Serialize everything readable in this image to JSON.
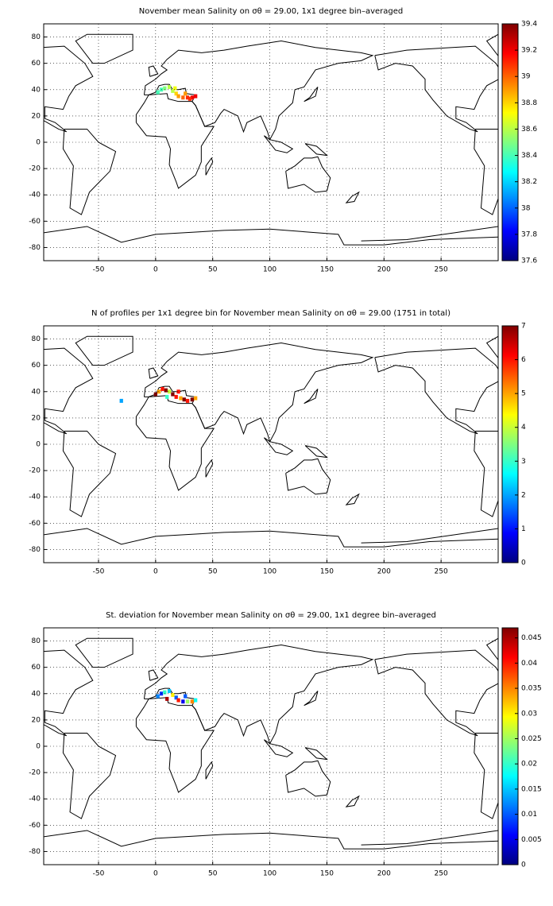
{
  "chart_data": [
    {
      "type": "map",
      "title": "November mean Salinity on σθ = 29.00, 1x1 degree bin–averaged",
      "colormap": "jet",
      "grid": true,
      "xlim": [
        -98,
        300
      ],
      "ylim": [
        -90,
        90
      ],
      "xticks": [
        -50,
        0,
        50,
        100,
        150,
        200,
        250
      ],
      "yticks": [
        -80,
        -60,
        -40,
        -20,
        0,
        20,
        40,
        60,
        80
      ],
      "clim": [
        37.6,
        39.4
      ],
      "cticks": [
        37.6,
        37.8,
        38,
        38.2,
        38.4,
        38.6,
        38.8,
        39,
        39.2,
        39.4
      ],
      "x": [
        2,
        5,
        8,
        12,
        15,
        18,
        20,
        24,
        28,
        32,
        35,
        17,
        26,
        30
      ],
      "y": [
        38,
        40,
        41,
        42,
        39,
        37,
        35,
        34,
        34,
        34,
        35,
        41,
        37,
        33
      ],
      "values": [
        38.4,
        38.4,
        38.5,
        38.6,
        38.6,
        38.8,
        38.9,
        39.0,
        39.1,
        39.2,
        39.2,
        38.7,
        38.9,
        39.1
      ]
    },
    {
      "type": "map",
      "title": "N of profiles per 1x1 degree bin for November mean Salinity on σθ = 29.00 (1751 in total)",
      "colormap": "jet",
      "grid": true,
      "xlim": [
        -98,
        300
      ],
      "ylim": [
        -90,
        90
      ],
      "xticks": [
        -50,
        0,
        50,
        100,
        150,
        200,
        250
      ],
      "yticks": [
        -80,
        -60,
        -40,
        -20,
        0,
        20,
        40,
        60,
        80
      ],
      "clim": [
        0,
        7
      ],
      "cticks": [
        0,
        1,
        2,
        3,
        4,
        5,
        6,
        7
      ],
      "x": [
        -30,
        0,
        3,
        6,
        9,
        12,
        15,
        18,
        22,
        25,
        28,
        32,
        35,
        10,
        20
      ],
      "y": [
        33,
        38,
        40,
        42,
        41,
        40,
        38,
        36,
        35,
        34,
        33,
        34,
        35,
        36,
        40
      ],
      "values": [
        2,
        7,
        5,
        6,
        7,
        4,
        7,
        6,
        5,
        7,
        6,
        7,
        5,
        3,
        6
      ]
    },
    {
      "type": "map",
      "title": "St. deviation for November mean Salinity on σθ = 29.00, 1x1 degree bin–averaged",
      "colormap": "jet",
      "grid": true,
      "xlim": [
        -98,
        300
      ],
      "ylim": [
        -90,
        90
      ],
      "xticks": [
        -50,
        0,
        50,
        100,
        150,
        200,
        250
      ],
      "yticks": [
        -80,
        -60,
        -40,
        -20,
        0,
        20,
        40,
        60,
        80
      ],
      "clim": [
        0,
        0.047
      ],
      "cticks": [
        0,
        0.005,
        0.01,
        0.015,
        0.02,
        0.025,
        0.03,
        0.035,
        0.04,
        0.045
      ],
      "x": [
        2,
        5,
        8,
        12,
        15,
        18,
        20,
        24,
        28,
        32,
        35,
        10,
        26
      ],
      "y": [
        38,
        40,
        41,
        42,
        39,
        37,
        35,
        34,
        34,
        34,
        35,
        36,
        38
      ],
      "values": [
        0.012,
        0.008,
        0.02,
        0.015,
        0.03,
        0.01,
        0.04,
        0.005,
        0.025,
        0.035,
        0.018,
        0.045,
        0.01
      ]
    }
  ]
}
